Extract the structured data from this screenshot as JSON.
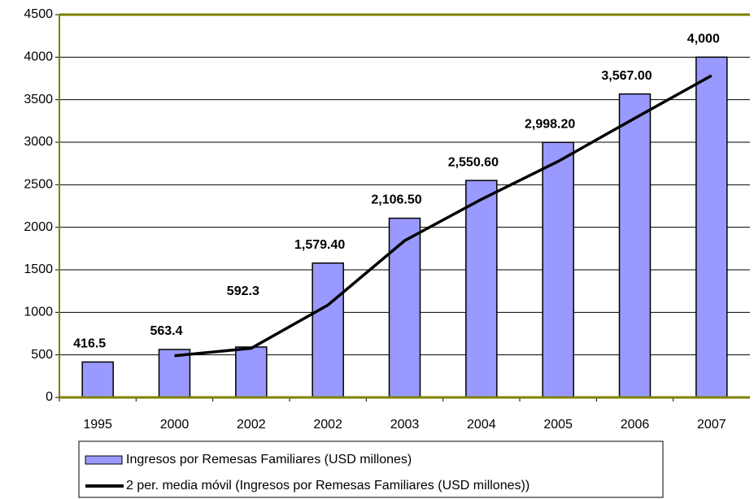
{
  "chart_data": {
    "type": "bar",
    "categories": [
      "1995",
      "2000",
      "2002",
      "2002",
      "2003",
      "2004",
      "2005",
      "2006",
      "2007"
    ],
    "series": [
      {
        "name": "Ingresos por Remesas Familiares (USD millones)",
        "type": "bar",
        "color": "#9999ff",
        "values": [
          416.5,
          563.4,
          592.3,
          1579.4,
          2106.5,
          2550.6,
          2998.2,
          3567,
          4000
        ],
        "value_labels": [
          "416.5",
          "563.4",
          "592.3",
          "1,579.40",
          "2,106.50",
          "2,550.60",
          "2,998.20",
          "3,567.00",
          "4,000"
        ]
      },
      {
        "name": "2 per. media móvil (Ingresos por Remesas Familiares (USD millones))",
        "type": "line",
        "color": "#000000",
        "values": [
          null,
          489.95,
          577.85,
          1085.85,
          1842.95,
          2328.55,
          2774.4,
          3282.6,
          3783.5
        ]
      }
    ],
    "ylim": [
      0,
      4500
    ],
    "yticks": [
      0,
      500,
      1000,
      1500,
      2000,
      2500,
      3000,
      3500,
      4000,
      4500
    ],
    "grid": true
  }
}
